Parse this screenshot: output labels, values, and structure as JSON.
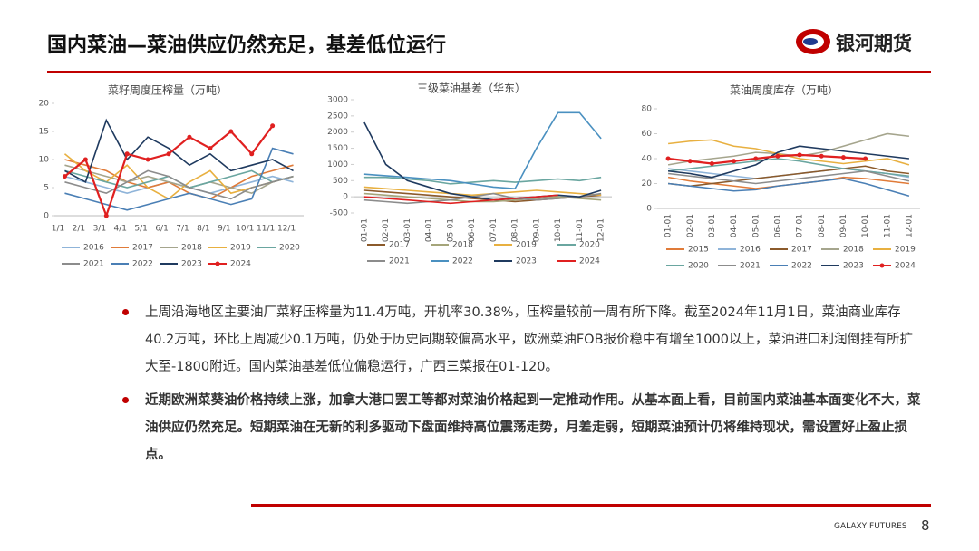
{
  "header": {
    "title": "国内菜油—菜油供应仍然充足，基差低位运行",
    "logo": "银河期货"
  },
  "chart_data": [
    {
      "type": "line",
      "title": "菜籽周度压榨量（万吨）",
      "categories": [
        "1/1",
        "2/1",
        "3/1",
        "4/1",
        "5/1",
        "6/1",
        "7/1",
        "8/1",
        "9/1",
        "10/1",
        "11/1",
        "12/1"
      ],
      "ylim": [
        0,
        20
      ],
      "yticks": [
        0,
        5,
        10,
        15,
        20
      ],
      "series": [
        {
          "name": "2016",
          "color": "#8fb4d9",
          "values": [
            7,
            6,
            5,
            4,
            5,
            6,
            5,
            4,
            5,
            6,
            7,
            6
          ]
        },
        {
          "name": "2017",
          "color": "#e07b39",
          "values": [
            10,
            9,
            8,
            6,
            5,
            6,
            4,
            3,
            5,
            7,
            8,
            9
          ]
        },
        {
          "name": "2018",
          "color": "#a5a58d",
          "values": [
            9,
            8,
            7,
            6,
            7,
            6,
            5,
            6,
            5,
            4,
            6,
            7
          ]
        },
        {
          "name": "2019",
          "color": "#e8b040",
          "values": [
            11,
            8,
            6,
            9,
            5,
            3,
            6,
            8,
            4,
            5,
            6,
            7
          ]
        },
        {
          "name": "2020",
          "color": "#6aa6a0",
          "values": [
            8,
            7,
            6,
            5,
            6,
            7,
            5,
            6,
            7,
            8,
            6,
            7
          ]
        },
        {
          "name": "2021",
          "color": "#8c8c8c",
          "values": [
            6,
            5,
            4,
            6,
            8,
            7,
            5,
            4,
            3,
            5,
            6,
            7
          ]
        },
        {
          "name": "2022",
          "color": "#4a7fb5",
          "values": [
            4,
            3,
            2,
            1,
            2,
            3,
            4,
            3,
            2,
            3,
            12,
            11
          ]
        },
        {
          "name": "2023",
          "color": "#1f3a5f",
          "values": [
            8,
            6,
            17,
            10,
            14,
            12,
            9,
            11,
            8,
            9,
            10,
            8
          ]
        },
        {
          "name": "2024",
          "color": "#e02020",
          "markers": true,
          "values": [
            7,
            10,
            0,
            11,
            10,
            11,
            14,
            12,
            15,
            11,
            16,
            null
          ]
        }
      ]
    },
    {
      "type": "line",
      "title": "三级菜油基差（华东）",
      "categories": [
        "01-01",
        "02-01",
        "03-01",
        "04-01",
        "05-01",
        "06-01",
        "07-01",
        "08-01",
        "09-01",
        "10-01",
        "11-01",
        "12-01"
      ],
      "ylim": [
        -500,
        3000
      ],
      "yticks": [
        -500,
        0,
        500,
        1000,
        1500,
        2000,
        2500,
        3000
      ],
      "series": [
        {
          "name": "2017",
          "color": "#8b5a2b",
          "values": [
            200,
            150,
            100,
            50,
            0,
            -50,
            -100,
            -150,
            -100,
            -50,
            0,
            50
          ]
        },
        {
          "name": "2018",
          "color": "#a5a57a",
          "values": [
            100,
            50,
            0,
            -50,
            -100,
            -150,
            -150,
            -100,
            -50,
            0,
            -50,
            -100
          ]
        },
        {
          "name": "2019",
          "color": "#e8b040",
          "values": [
            300,
            250,
            200,
            150,
            100,
            50,
            100,
            150,
            200,
            150,
            100,
            50
          ]
        },
        {
          "name": "2020",
          "color": "#6aa6a0",
          "values": [
            600,
            600,
            550,
            500,
            400,
            450,
            500,
            450,
            500,
            550,
            500,
            600
          ]
        },
        {
          "name": "2021",
          "color": "#8c8c8c",
          "values": [
            -100,
            -150,
            -200,
            -150,
            -100,
            0,
            100,
            -50,
            -100,
            -50,
            0,
            100
          ]
        },
        {
          "name": "2022",
          "color": "#4a90c0",
          "values": [
            700,
            650,
            600,
            550,
            500,
            400,
            300,
            250,
            1500,
            2600,
            2600,
            1800
          ]
        },
        {
          "name": "2023",
          "color": "#1f3a5f",
          "values": [
            2300,
            1000,
            500,
            300,
            100,
            0,
            -100,
            -50,
            0,
            50,
            0,
            200
          ]
        },
        {
          "name": "2024",
          "color": "#e02020",
          "values": [
            0,
            -50,
            -100,
            -150,
            -200,
            -150,
            -100,
            -50,
            0,
            50,
            null,
            null
          ]
        }
      ]
    },
    {
      "type": "line",
      "title": "菜油周度库存（万吨）",
      "categories": [
        "01-01",
        "02-01",
        "03-01",
        "04-01",
        "05-01",
        "06-01",
        "07-01",
        "08-01",
        "09-01",
        "10-01",
        "11-01",
        "12-01"
      ],
      "ylim": [
        0,
        80
      ],
      "yticks": [
        0,
        20,
        40,
        60,
        80
      ],
      "series": [
        {
          "name": "2015",
          "color": "#e07b39",
          "values": [
            25,
            22,
            20,
            18,
            16,
            18,
            20,
            22,
            25,
            24,
            22,
            20
          ]
        },
        {
          "name": "2016",
          "color": "#8fb4d9",
          "values": [
            32,
            30,
            28,
            26,
            24,
            26,
            28,
            30,
            32,
            30,
            28,
            25
          ]
        },
        {
          "name": "2017",
          "color": "#8b5a2b",
          "values": [
            20,
            18,
            20,
            22,
            24,
            26,
            28,
            30,
            32,
            34,
            30,
            28
          ]
        },
        {
          "name": "2018",
          "color": "#a5a58d",
          "values": [
            35,
            38,
            40,
            42,
            45,
            44,
            42,
            45,
            50,
            55,
            60,
            58
          ]
        },
        {
          "name": "2019",
          "color": "#e8b040",
          "values": [
            52,
            54,
            55,
            50,
            48,
            44,
            40,
            38,
            36,
            38,
            40,
            35
          ]
        },
        {
          "name": "2020",
          "color": "#6aa6a0",
          "values": [
            30,
            32,
            34,
            36,
            38,
            40,
            38,
            35,
            32,
            30,
            28,
            26
          ]
        },
        {
          "name": "2021",
          "color": "#8c8c8c",
          "values": [
            28,
            26,
            24,
            22,
            20,
            22,
            24,
            26,
            28,
            30,
            26,
            22
          ]
        },
        {
          "name": "2022",
          "color": "#4a7fb5",
          "values": [
            20,
            18,
            16,
            14,
            15,
            18,
            20,
            22,
            24,
            20,
            15,
            10
          ]
        },
        {
          "name": "2023",
          "color": "#1f3a5f",
          "values": [
            30,
            28,
            25,
            30,
            35,
            45,
            50,
            48,
            46,
            44,
            42,
            40
          ]
        },
        {
          "name": "2024",
          "color": "#e02020",
          "markers": true,
          "values": [
            40,
            38,
            36,
            38,
            40,
            42,
            43,
            42,
            41,
            40,
            null,
            null
          ]
        }
      ]
    }
  ],
  "bullets": [
    "上周沿海地区主要油厂菜籽压榨量为11.4万吨，开机率30.38%，压榨量较前一周有所下降。截至2024年11月1日，菜油商业库存40.2万吨，环比上周减少0.1万吨，仍处于历史同期较偏高水平，欧洲菜油FOB报价稳中有增至1000以上，菜油进口利润倒挂有所扩大至-1800附近。国内菜油基差低位偏稳运行，广西三菜报在01-120。",
    "近期欧洲菜葵油价格持续上涨，加拿大港口罢工等都对菜油价格起到一定推动作用。从基本面上看，目前国内菜油基本面变化不大，菜油供应仍然充足。短期菜油在无新的利多驱动下盘面维持高位震荡走势，月差走弱，短期菜油预计仍将维持现状，需设置好止盈止损点。"
  ],
  "footer": {
    "brand": "GALAXY FUTURES",
    "page": "8"
  }
}
